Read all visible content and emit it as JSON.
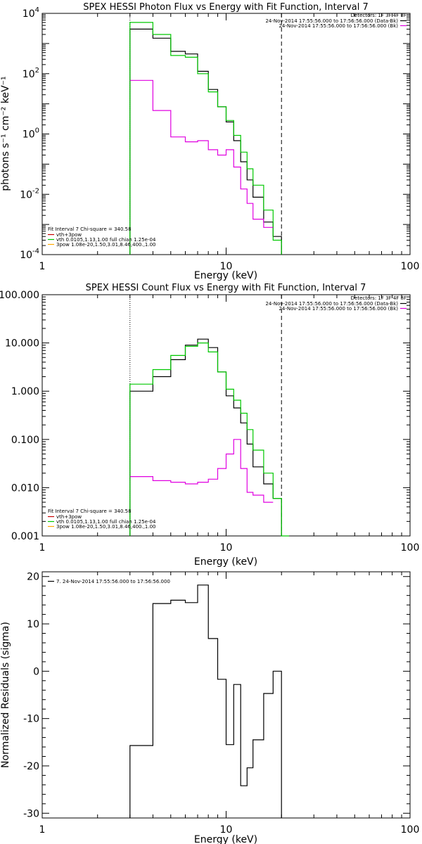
{
  "chart_data": [
    {
      "type": "line",
      "title": "SPEX HESSI Photon Flux vs Energy with Fit Function, Interval 7",
      "xlabel": "Energy (keV)",
      "ylabel": "photons s⁻¹ cm⁻² keV⁻¹",
      "xscale": "log",
      "yscale": "log",
      "xlim": [
        1,
        100
      ],
      "ylim": [
        0.0001,
        10000
      ],
      "x_ticks": [
        {
          "v": 1,
          "label": "1"
        },
        {
          "v": 10,
          "label": "10"
        },
        {
          "v": 100,
          "label": "100"
        }
      ],
      "y_ticks": [
        {
          "v": 0.0001,
          "base": "10",
          "exp": "-4"
        },
        {
          "v": 0.01,
          "base": "10",
          "exp": "-2"
        },
        {
          "v": 1,
          "base": "10",
          "exp": "0"
        },
        {
          "v": 100,
          "base": "10",
          "exp": "2"
        },
        {
          "v": 10000,
          "base": "10",
          "exp": "4"
        }
      ],
      "vlines": [
        {
          "x": 3.0,
          "style": "dotted",
          "color": "#000000"
        },
        {
          "x": 20.0,
          "style": "dashed",
          "color": "#000000"
        }
      ],
      "legend_top": {
        "header": "Detectors: 1F 3F 4F 8F",
        "entries": [
          {
            "text": "24-Nov-2014 17:55:56.000 to 17:56:56.000 (Data-Bk)",
            "color": "#000000"
          },
          {
            "text": "24-Nov-2014 17:55:56.000 to 17:56:56.000 (Bk)",
            "color": "#e000e0"
          }
        ]
      },
      "legend_bottom": {
        "header": "Fit Interval 7   Chi-square = 340.58",
        "entries": [
          {
            "text": "vth+3pow",
            "color": "#c80000"
          },
          {
            "text": "vth 0.0105,1.13,1.00  full chian 1.25e-04",
            "color": "#00c800"
          },
          {
            "text": "3pow 1.08e-20,1.50,3.01,8.46,400.,1.00",
            "color": "#ffaa00"
          }
        ]
      },
      "series": [
        {
          "color": "#000000",
          "edges": [
            3.0,
            4.0,
            5.0,
            6.0,
            7.0,
            8.0,
            9.0,
            10.0,
            11.0,
            12.0,
            13.0,
            14.0,
            16.0,
            18.0,
            20.0
          ],
          "values": [
            3000,
            1500,
            550,
            450,
            120,
            30,
            8,
            2.5,
            0.6,
            0.12,
            0.03,
            0.008,
            0.0012,
            0.0004
          ],
          "baseline": true
        },
        {
          "color": "#00c800",
          "edges": [
            3.0,
            4.0,
            5.0,
            6.0,
            7.0,
            8.0,
            9.0,
            10.0,
            11.0,
            12.0,
            13.0,
            14.0,
            16.0,
            18.0,
            20.0
          ],
          "values": [
            5000,
            2000,
            400,
            350,
            100,
            25,
            8,
            2.8,
            0.9,
            0.25,
            0.07,
            0.02,
            0.003,
            0.0003
          ],
          "baseline": true
        },
        {
          "color": "#e000e0",
          "edges": [
            3.0,
            4.0,
            5.0,
            6.0,
            7.0,
            8.0,
            9.0,
            10.0,
            11.0,
            12.0,
            13.0,
            14.0,
            16.0,
            18.0
          ],
          "values": [
            60,
            6,
            0.8,
            0.55,
            0.6,
            0.3,
            0.2,
            0.3,
            0.08,
            0.015,
            0.005,
            0.0015,
            0.0008
          ],
          "baseline": false
        }
      ]
    },
    {
      "type": "line",
      "title": "SPEX HESSI Count Flux vs Energy with Fit Function, Interval 7",
      "xlabel": "Energy (keV)",
      "ylabel": "",
      "xscale": "log",
      "yscale": "log",
      "xlim": [
        1,
        100
      ],
      "ylim": [
        0.001,
        100
      ],
      "x_ticks": [
        {
          "v": 1,
          "label": "1"
        },
        {
          "v": 10,
          "label": "10"
        },
        {
          "v": 100,
          "label": "100"
        }
      ],
      "y_ticks": [
        {
          "v": 0.001,
          "label": "0.001"
        },
        {
          "v": 0.01,
          "label": "0.010"
        },
        {
          "v": 0.1,
          "label": "0.100"
        },
        {
          "v": 1,
          "label": "1.000"
        },
        {
          "v": 10,
          "label": "10.000"
        },
        {
          "v": 100,
          "label": "100.000"
        }
      ],
      "vlines": [
        {
          "x": 3.0,
          "style": "dotted",
          "color": "#000000"
        },
        {
          "x": 20.0,
          "style": "dashed",
          "color": "#000000"
        }
      ],
      "legend_top": {
        "header": "Detectors: 1F 3F 4F 8F",
        "entries": [
          {
            "text": "24-Nov-2014 17:55:56.000 to 17:56:56.000 (Data-Bk)",
            "color": "#000000"
          },
          {
            "text": "24-Nov-2014 17:55:56.000 to 17:56:56.000 (Bk)",
            "color": "#e000e0"
          }
        ]
      },
      "legend_bottom": {
        "header": "Fit Interval 7   Chi-square = 340.58",
        "entries": [
          {
            "text": "vth+3pow",
            "color": "#c80000"
          },
          {
            "text": "vth 0.0105,1.13,1.00  full chian 1.25e-04",
            "color": "#00c800"
          },
          {
            "text": "3pow 1.08e-20,1.50,3.01,8.46,400.,1.00",
            "color": "#ffaa00"
          }
        ]
      },
      "series": [
        {
          "color": "#000000",
          "edges": [
            3.0,
            4.0,
            5.0,
            6.0,
            7.0,
            8.0,
            9.0,
            10.0,
            11.0,
            12.0,
            13.0,
            14.0,
            16.0,
            18.0,
            20.0
          ],
          "values": [
            1.0,
            2.0,
            4.5,
            9.0,
            12.0,
            8.0,
            2.5,
            0.8,
            0.45,
            0.22,
            0.08,
            0.027,
            0.012,
            0.006
          ],
          "baseline": true
        },
        {
          "color": "#00c800",
          "edges": [
            3.0,
            4.0,
            5.0,
            6.0,
            7.0,
            8.0,
            9.0,
            10.0,
            11.0,
            12.0,
            13.0,
            14.0,
            16.0,
            18.0,
            20.0,
            22.0
          ],
          "values": [
            1.4,
            2.8,
            5.5,
            8.5,
            10.0,
            6.5,
            2.5,
            1.1,
            0.65,
            0.35,
            0.16,
            0.06,
            0.02,
            0.006,
            0.001
          ],
          "baseline": true
        },
        {
          "color": "#e000e0",
          "edges": [
            3.0,
            4.0,
            5.0,
            6.0,
            7.0,
            8.0,
            9.0,
            10.0,
            11.0,
            12.0,
            13.0,
            14.0,
            16.0,
            18.0
          ],
          "values": [
            0.017,
            0.014,
            0.013,
            0.012,
            0.013,
            0.015,
            0.025,
            0.05,
            0.1,
            0.025,
            0.008,
            0.007,
            0.005
          ],
          "baseline": false
        }
      ]
    },
    {
      "type": "line",
      "title": "",
      "xlabel": "Energy (keV)",
      "ylabel": "Normalized Residuals (sigma)",
      "xscale": "log",
      "yscale": "linear",
      "xlim": [
        1,
        100
      ],
      "ylim": [
        -31,
        21
      ],
      "x_ticks": [
        {
          "v": 1,
          "label": "1"
        },
        {
          "v": 10,
          "label": "10"
        },
        {
          "v": 100,
          "label": "100"
        }
      ],
      "y_ticks": [
        {
          "v": -30,
          "label": "-30"
        },
        {
          "v": -20,
          "label": "-20"
        },
        {
          "v": -10,
          "label": "-10"
        },
        {
          "v": 0,
          "label": "0"
        },
        {
          "v": 10,
          "label": "10"
        },
        {
          "v": 20,
          "label": "20"
        }
      ],
      "vlines": [],
      "legend_top": {
        "header": "",
        "entries": [
          {
            "text": "7. 24-Nov-2014 17:55:56.000 to 17:56:56.000",
            "color": "#000000"
          }
        ]
      },
      "legend_bottom": null,
      "series": [
        {
          "color": "#000000",
          "edges": [
            3.0,
            4.0,
            5.0,
            6.0,
            7.0,
            8.0,
            9.0,
            10.0,
            11.0,
            12.0,
            13.0,
            14.0,
            16.0,
            18.0,
            20.0
          ],
          "values": [
            -15.7,
            14.3,
            15.0,
            14.5,
            18.2,
            6.9,
            -1.7,
            -15.5,
            -2.8,
            -24.2,
            -20.4,
            -14.5,
            -4.7,
            0.0
          ],
          "baseline": true,
          "baseline_value": -31
        }
      ]
    }
  ]
}
